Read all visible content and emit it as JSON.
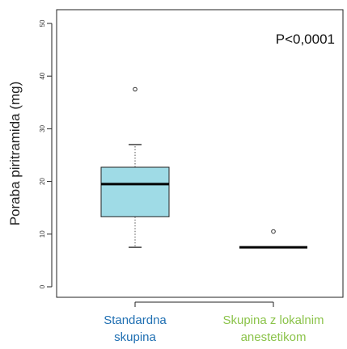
{
  "chart_data": {
    "type": "box",
    "ylabel": "Poraba piritramida (mg)",
    "ylim": [
      0,
      50
    ],
    "yticks": [
      "0",
      "10",
      "20",
      "30",
      "40",
      "50"
    ],
    "annotation": "P<0,0001",
    "grid": false,
    "colors": {
      "box_fill": "#9fdbe6",
      "standard_label": "#1f6fb2",
      "local_label": "#8bc34a",
      "axis": "#222222"
    },
    "groups": [
      {
        "label_lines": [
          "Standardna",
          "skupina"
        ],
        "whisker_low": 7.5,
        "q1": 13.3,
        "median": 19.5,
        "q3": 22.7,
        "whisker_high": 27,
        "outliers": [
          37.5
        ]
      },
      {
        "label_lines": [
          "Skupina z lokalnim",
          "anestetikom"
        ],
        "whisker_low": 7.5,
        "q1": 7.5,
        "median": 7.5,
        "q3": 7.5,
        "whisker_high": 7.5,
        "outliers": [
          10.5
        ]
      }
    ]
  }
}
